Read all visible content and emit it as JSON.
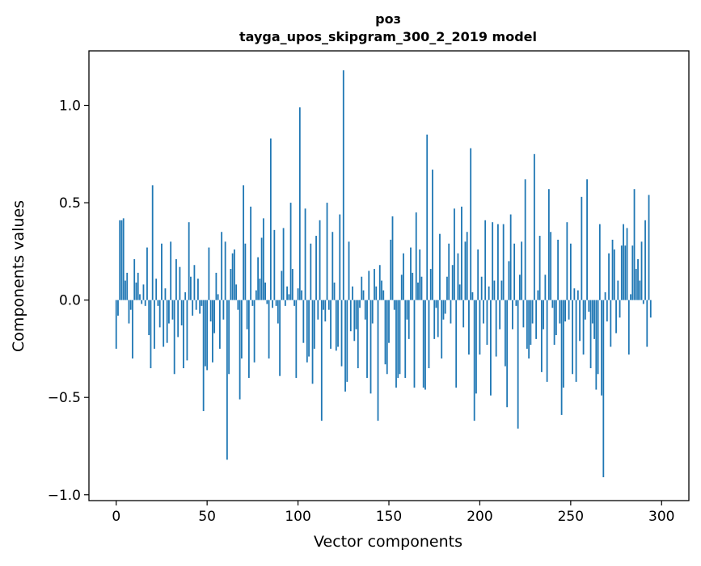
{
  "chart_data": {
    "type": "bar",
    "title_line1": "роз",
    "title_line2": "tayga_upos_skipgram_300_2_2019 model",
    "xlabel": "Vector components",
    "ylabel": "Components values",
    "xlim": [
      -15,
      315
    ],
    "ylim": [
      -1.03,
      1.28
    ],
    "xticks": [
      0,
      50,
      100,
      150,
      200,
      250,
      300
    ],
    "xtick_labels": [
      "0",
      "50",
      "100",
      "150",
      "200",
      "250",
      "300"
    ],
    "yticks": [
      -1.0,
      -0.5,
      0.0,
      0.5,
      1.0
    ],
    "ytick_labels": [
      "−1.0",
      "−0.5",
      "0.0",
      "0.5",
      "1.0"
    ],
    "bar_color": "#1f77b4",
    "grid": false,
    "values": [
      -0.25,
      -0.08,
      0.41,
      0.41,
      0.42,
      0.1,
      0.14,
      -0.12,
      -0.05,
      -0.3,
      0.21,
      0.09,
      0.14,
      0.03,
      -0.02,
      0.08,
      -0.03,
      0.27,
      -0.18,
      -0.35,
      0.59,
      -0.25,
      0.11,
      -0.03,
      -0.14,
      0.29,
      -0.24,
      0.06,
      -0.22,
      -0.12,
      0.3,
      -0.1,
      -0.38,
      0.21,
      -0.19,
      0.17,
      -0.13,
      -0.35,
      0.04,
      -0.31,
      0.4,
      0.12,
      -0.08,
      0.18,
      -0.05,
      0.11,
      -0.07,
      -0.03,
      -0.57,
      -0.34,
      -0.36,
      0.27,
      -0.11,
      -0.32,
      -0.17,
      0.14,
      0.03,
      -0.25,
      0.35,
      -0.1,
      0.3,
      -0.82,
      -0.38,
      0.16,
      0.24,
      0.26,
      0.08,
      -0.05,
      -0.51,
      -0.3,
      0.59,
      0.29,
      -0.15,
      -0.4,
      0.48,
      -0.03,
      -0.32,
      0.05,
      0.22,
      0.11,
      0.32,
      0.42,
      0.09,
      -0.02,
      -0.3,
      0.83,
      -0.04,
      0.36,
      -0.03,
      -0.12,
      -0.39,
      0.15,
      0.37,
      -0.03,
      0.07,
      0.03,
      0.5,
      0.16,
      -0.03,
      -0.4,
      0.06,
      0.99,
      0.05,
      -0.22,
      0.47,
      -0.32,
      -0.29,
      0.29,
      -0.43,
      -0.25,
      0.33,
      -0.1,
      0.41,
      -0.62,
      -0.05,
      -0.11,
      0.5,
      -0.05,
      -0.25,
      0.35,
      0.09,
      -0.26,
      -0.24,
      0.44,
      -0.34,
      1.18,
      -0.47,
      -0.42,
      0.3,
      -0.16,
      0.07,
      -0.21,
      -0.15,
      -0.35,
      -0.04,
      0.12,
      0.05,
      -0.1,
      -0.4,
      0.15,
      -0.48,
      -0.12,
      0.16,
      0.07,
      -0.62,
      0.18,
      0.1,
      0.05,
      -0.33,
      -0.38,
      -0.22,
      0.31,
      0.43,
      -0.05,
      -0.45,
      -0.4,
      -0.38,
      0.13,
      0.24,
      -0.4,
      -0.1,
      -0.2,
      0.27,
      0.14,
      -0.45,
      0.45,
      0.09,
      0.26,
      0.12,
      -0.45,
      -0.46,
      0.85,
      -0.35,
      0.16,
      0.67,
      -0.2,
      -0.04,
      -0.19,
      0.34,
      -0.3,
      -0.1,
      -0.07,
      0.12,
      0.29,
      -0.12,
      0.18,
      0.47,
      -0.45,
      0.24,
      0.08,
      0.48,
      -0.14,
      0.3,
      0.35,
      -0.28,
      0.78,
      0.04,
      -0.62,
      -0.48,
      0.26,
      -0.28,
      0.12,
      -0.12,
      0.41,
      -0.23,
      0.07,
      -0.49,
      0.4,
      0.1,
      -0.29,
      0.39,
      -0.15,
      0.1,
      0.39,
      -0.34,
      -0.55,
      0.2,
      0.44,
      -0.15,
      0.29,
      -0.03,
      -0.66,
      0.13,
      0.3,
      -0.14,
      0.62,
      -0.25,
      -0.3,
      -0.23,
      -0.12,
      0.75,
      -0.2,
      0.05,
      0.33,
      -0.37,
      -0.15,
      0.13,
      -0.42,
      0.57,
      0.35,
      -0.04,
      -0.23,
      -0.18,
      0.31,
      -0.12,
      -0.59,
      -0.45,
      -0.11,
      0.4,
      -0.1,
      0.29,
      -0.38,
      0.06,
      -0.42,
      0.05,
      -0.21,
      0.53,
      -0.28,
      -0.1,
      0.62,
      -0.06,
      -0.35,
      -0.12,
      -0.2,
      -0.46,
      -0.38,
      0.39,
      -0.49,
      -0.91,
      0.04,
      -0.11,
      0.24,
      -0.24,
      0.31,
      0.26,
      -0.17,
      0.1,
      -0.09,
      0.28,
      0.39,
      0.28,
      0.37,
      -0.28,
      0.03,
      0.28,
      0.57,
      0.16,
      0.21,
      0.1,
      0.3,
      -0.02,
      0.41,
      -0.24,
      0.54,
      -0.09
    ]
  }
}
